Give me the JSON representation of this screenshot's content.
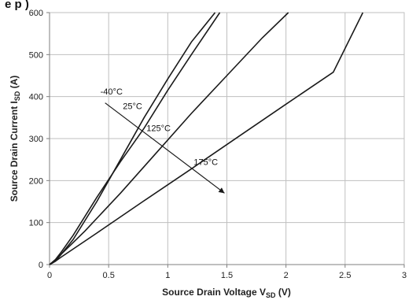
{
  "chart_data": {
    "type": "line",
    "title": "",
    "cropped_title_text": "e p )",
    "xlabel": "Source Drain Voltage V",
    "xlabel_sub": "SD",
    "xlabel_unit": " (V)",
    "ylabel": "Source Drain Current I",
    "ylabel_sub": "SD",
    "ylabel_unit": " (A)",
    "xlim": [
      0,
      3
    ],
    "ylim": [
      0,
      600
    ],
    "x_ticks": [
      0,
      0.5,
      1,
      1.5,
      2,
      2.5,
      3
    ],
    "x_tick_labels": [
      "0",
      "0.5",
      "1",
      "1.5",
      "2",
      "2.5",
      "3"
    ],
    "y_ticks": [
      0,
      100,
      200,
      300,
      400,
      500,
      600
    ],
    "y_tick_labels": [
      "0",
      "100",
      "200",
      "300",
      "400",
      "500",
      "600"
    ],
    "grid": true,
    "series": [
      {
        "name": "-40°C",
        "x": [
          0,
          0.05,
          0.1,
          0.2,
          0.4,
          0.6,
          0.8,
          1.0,
          1.2,
          1.4
        ],
        "y": [
          0,
          8,
          25,
          60,
          150,
          250,
          350,
          442,
          530,
          600
        ]
      },
      {
        "name": "25°C",
        "x": [
          0,
          0.05,
          0.1,
          0.2,
          0.4,
          0.6,
          0.8,
          1.0,
          1.2,
          1.44
        ],
        "y": [
          0,
          12,
          30,
          70,
          160,
          245,
          325,
          415,
          500,
          600
        ]
      },
      {
        "name": "125°C",
        "x": [
          0,
          0.05,
          0.1,
          0.3,
          0.6,
          0.9,
          1.2,
          1.5,
          1.8,
          2.02
        ],
        "y": [
          0,
          10,
          25,
          80,
          170,
          265,
          360,
          450,
          540,
          600
        ]
      },
      {
        "name": "175°C",
        "x": [
          0,
          0.05,
          0.1,
          0.4,
          0.8,
          1.2,
          1.6,
          2.0,
          2.4,
          2.65
        ],
        "y": [
          0,
          8,
          18,
          75,
          152,
          228,
          305,
          382,
          458,
          600
        ]
      }
    ],
    "annotations": [
      {
        "text": "-40°C",
        "x": 0.43,
        "y": 405
      },
      {
        "text": "25°C",
        "x": 0.62,
        "y": 370
      },
      {
        "text": "125°C",
        "x": 0.82,
        "y": 318
      },
      {
        "text": "175°C",
        "x": 1.22,
        "y": 237
      }
    ],
    "arrow": {
      "from": [
        0.47,
        385
      ],
      "to": [
        1.48,
        170
      ]
    },
    "colors": {
      "line": "#1a1a1a",
      "grid": "#bfbfbf",
      "axis": "#7f7f7f"
    }
  }
}
